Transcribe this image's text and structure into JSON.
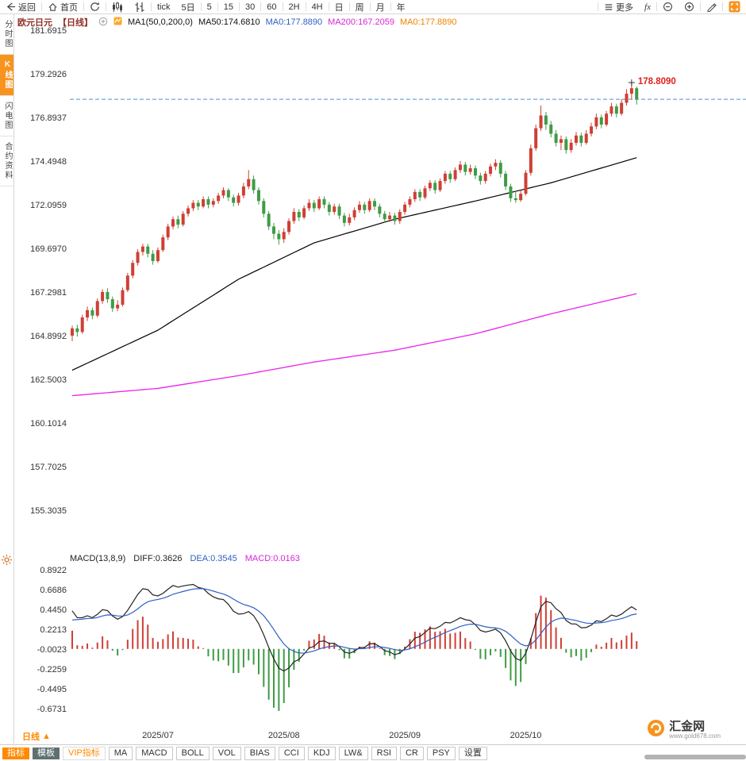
{
  "toolbar": {
    "back_label": "返回",
    "home_label": "首页",
    "tick_label": "tick",
    "periods": [
      "5日",
      "5",
      "15",
      "30",
      "60",
      "2H",
      "4H",
      "日",
      "周",
      "月",
      "年"
    ],
    "more_label": "更多",
    "fx_label": "fx"
  },
  "sidebar": {
    "tabs": [
      {
        "id": "time-chart",
        "label": "分时图",
        "active": false
      },
      {
        "id": "kline-chart",
        "label": "K线图",
        "active": true
      },
      {
        "id": "lightning-chart",
        "label": "闪电图",
        "active": false
      },
      {
        "id": "contract-info",
        "label": "合约资料",
        "active": false
      }
    ]
  },
  "chart_header": {
    "symbol": "欧元日元",
    "period_tag": "【日线】",
    "ma_params": "MA1(50,0,200,0)",
    "ma50": "MA50:174.6810",
    "ma0_blue": "MA0:177.8890",
    "ma200": "MA200:167.2059",
    "ma0_orange": "MA0:177.8890"
  },
  "macd_header": {
    "title": "MACD(13,8,9)",
    "diff": "DIFF:0.3626",
    "dea": "DEA:0.3545",
    "macd": "MACD:0.0163"
  },
  "period_selector": {
    "label": "日线",
    "arrow": "▲"
  },
  "logo": {
    "name": "汇金网",
    "url": "www.gold678.com"
  },
  "bottom_toolbar": {
    "tabs": [
      {
        "label": "指标",
        "style": "orange"
      },
      {
        "label": "模板",
        "style": "dark"
      },
      {
        "label": "VIP指标",
        "style": "vip"
      }
    ],
    "indicators": [
      "MA",
      "MACD",
      "BOLL",
      "VOL",
      "BIAS",
      "CCI",
      "KDJ",
      "LW&",
      "RSI",
      "CR",
      "PSY",
      "设置"
    ]
  },
  "colors": {
    "up": "#cf3f35",
    "down": "#3f9b45",
    "ma50": "#000000",
    "ma200": "#ec22ec",
    "last_price_line": "#4d8fd1",
    "peak_label": "#e02020",
    "diff_line": "#222222",
    "dea_line": "#2f5fc4",
    "axis_text": "#333333"
  },
  "chart_data": {
    "type": "candlestick",
    "symbol": "EUR/JPY daily (欧元日元 日线)",
    "last_price": 177.889,
    "peak_price": 178.809,
    "peak_day": 111,
    "price_axis_ticks": [
      181.6915,
      179.2926,
      176.8937,
      174.4948,
      172.0959,
      169.697,
      167.2981,
      164.8992,
      162.5003,
      160.1014,
      157.7025,
      155.3035
    ],
    "month_ticks": [
      {
        "day": 17,
        "label": "2025/07"
      },
      {
        "day": 42,
        "label": "2025/08"
      },
      {
        "day": 66,
        "label": "2025/09"
      },
      {
        "day": 90,
        "label": "2025/10"
      }
    ],
    "candles_ohlc": [
      [
        164.9,
        165.45,
        164.6,
        165.3
      ],
      [
        165.3,
        165.5,
        164.85,
        165.1
      ],
      [
        165.1,
        166.05,
        165.0,
        165.9
      ],
      [
        165.9,
        166.5,
        165.7,
        166.3
      ],
      [
        166.3,
        166.45,
        165.8,
        166.0
      ],
      [
        166.0,
        166.95,
        165.9,
        166.8
      ],
      [
        166.8,
        167.45,
        166.65,
        167.3
      ],
      [
        167.3,
        167.5,
        166.7,
        166.9
      ],
      [
        166.9,
        167.05,
        166.2,
        166.4
      ],
      [
        166.4,
        166.85,
        166.25,
        166.6
      ],
      [
        166.6,
        167.55,
        166.5,
        167.4
      ],
      [
        167.4,
        168.35,
        167.3,
        168.2
      ],
      [
        168.2,
        169.05,
        168.05,
        168.9
      ],
      [
        168.9,
        169.65,
        168.75,
        169.5
      ],
      [
        169.5,
        169.95,
        169.3,
        169.8
      ],
      [
        169.8,
        169.95,
        169.2,
        169.4
      ],
      [
        169.4,
        169.6,
        168.8,
        169.0
      ],
      [
        169.0,
        169.75,
        168.9,
        169.6
      ],
      [
        169.6,
        170.45,
        169.5,
        170.3
      ],
      [
        170.3,
        171.05,
        170.15,
        170.9
      ],
      [
        170.9,
        171.45,
        170.75,
        171.3
      ],
      [
        171.3,
        171.5,
        170.8,
        171.0
      ],
      [
        171.0,
        171.75,
        170.9,
        171.6
      ],
      [
        171.6,
        172.05,
        171.45,
        171.9
      ],
      [
        171.9,
        172.35,
        171.75,
        172.2
      ],
      [
        172.2,
        172.35,
        171.8,
        172.0
      ],
      [
        172.0,
        172.55,
        171.9,
        172.4
      ],
      [
        172.4,
        172.55,
        171.9,
        172.1
      ],
      [
        172.1,
        172.45,
        171.95,
        172.3
      ],
      [
        172.3,
        172.75,
        172.15,
        172.6
      ],
      [
        172.6,
        173.05,
        172.45,
        172.9
      ],
      [
        172.9,
        173.0,
        172.3,
        172.5
      ],
      [
        172.5,
        172.65,
        172.0,
        172.2
      ],
      [
        172.2,
        172.75,
        172.05,
        172.6
      ],
      [
        172.6,
        173.3,
        172.45,
        173.1
      ],
      [
        173.1,
        174.0,
        172.95,
        173.5
      ],
      [
        173.5,
        173.7,
        172.7,
        172.9
      ],
      [
        172.9,
        173.05,
        172.1,
        172.3
      ],
      [
        172.3,
        172.45,
        171.4,
        171.6
      ],
      [
        171.6,
        171.75,
        170.7,
        170.9
      ],
      [
        170.9,
        171.1,
        170.2,
        170.5
      ],
      [
        170.5,
        170.7,
        169.9,
        170.2
      ],
      [
        170.2,
        170.8,
        170.0,
        170.6
      ],
      [
        170.6,
        171.35,
        170.45,
        171.2
      ],
      [
        171.2,
        171.9,
        171.05,
        171.7
      ],
      [
        171.7,
        171.85,
        171.2,
        171.4
      ],
      [
        171.4,
        172.05,
        171.3,
        171.9
      ],
      [
        171.9,
        172.4,
        171.75,
        172.2
      ],
      [
        172.2,
        172.35,
        171.7,
        171.9
      ],
      [
        171.9,
        172.55,
        171.8,
        172.4
      ],
      [
        172.4,
        172.55,
        171.9,
        172.1
      ],
      [
        172.1,
        172.25,
        171.5,
        171.7
      ],
      [
        171.7,
        172.15,
        171.55,
        172.0
      ],
      [
        172.0,
        172.15,
        171.3,
        171.5
      ],
      [
        171.5,
        171.65,
        170.9,
        171.1
      ],
      [
        171.1,
        171.6,
        170.95,
        171.4
      ],
      [
        171.4,
        171.95,
        171.25,
        171.8
      ],
      [
        171.8,
        172.3,
        171.65,
        172.1
      ],
      [
        172.1,
        172.25,
        171.6,
        171.8
      ],
      [
        171.8,
        172.45,
        171.7,
        172.3
      ],
      [
        172.3,
        172.45,
        171.8,
        172.0
      ],
      [
        172.0,
        172.15,
        171.4,
        171.6
      ],
      [
        171.6,
        171.75,
        171.1,
        171.3
      ],
      [
        171.3,
        171.7,
        171.15,
        171.5
      ],
      [
        171.5,
        171.65,
        171.0,
        171.2
      ],
      [
        171.2,
        171.85,
        171.05,
        171.7
      ],
      [
        171.7,
        172.25,
        171.55,
        172.1
      ],
      [
        172.1,
        172.55,
        171.95,
        172.4
      ],
      [
        172.4,
        172.95,
        172.25,
        172.8
      ],
      [
        172.8,
        172.95,
        172.3,
        172.5
      ],
      [
        172.5,
        173.15,
        172.4,
        173.0
      ],
      [
        173.0,
        173.45,
        172.85,
        173.3
      ],
      [
        173.3,
        173.45,
        172.7,
        172.9
      ],
      [
        172.9,
        173.55,
        172.8,
        173.4
      ],
      [
        173.4,
        173.95,
        173.25,
        173.8
      ],
      [
        173.8,
        173.95,
        173.3,
        173.5
      ],
      [
        173.5,
        174.15,
        173.4,
        174.0
      ],
      [
        174.0,
        174.5,
        173.85,
        174.3
      ],
      [
        174.3,
        174.45,
        173.7,
        173.9
      ],
      [
        173.9,
        174.3,
        173.75,
        174.1
      ],
      [
        174.1,
        174.25,
        173.5,
        173.7
      ],
      [
        173.7,
        173.85,
        173.2,
        173.4
      ],
      [
        173.4,
        173.95,
        173.25,
        173.8
      ],
      [
        173.8,
        174.35,
        173.65,
        174.2
      ],
      [
        174.2,
        174.6,
        174.0,
        174.4
      ],
      [
        174.4,
        174.55,
        173.6,
        173.8
      ],
      [
        173.8,
        173.95,
        172.9,
        173.1
      ],
      [
        173.1,
        173.25,
        172.25,
        172.45
      ],
      [
        172.45,
        172.85,
        172.2,
        172.35
      ],
      [
        172.35,
        172.9,
        172.25,
        172.7
      ],
      [
        172.7,
        174.0,
        172.6,
        173.85
      ],
      [
        173.85,
        175.4,
        173.7,
        175.2
      ],
      [
        175.2,
        176.5,
        175.05,
        176.3
      ],
      [
        176.3,
        177.55,
        176.15,
        177.0
      ],
      [
        177.0,
        177.2,
        176.2,
        176.5
      ],
      [
        176.5,
        176.7,
        175.8,
        176.0
      ],
      [
        176.0,
        176.2,
        175.3,
        175.5
      ],
      [
        175.5,
        175.9,
        175.1,
        175.7
      ],
      [
        175.7,
        175.85,
        174.9,
        175.1
      ],
      [
        175.1,
        175.7,
        174.95,
        175.5
      ],
      [
        175.5,
        176.1,
        175.35,
        175.9
      ],
      [
        175.9,
        176.05,
        175.3,
        175.5
      ],
      [
        175.5,
        176.2,
        175.4,
        176.0
      ],
      [
        176.0,
        176.6,
        175.85,
        176.4
      ],
      [
        176.4,
        177.1,
        176.25,
        176.9
      ],
      [
        176.9,
        177.05,
        176.3,
        176.5
      ],
      [
        176.5,
        177.25,
        176.4,
        177.1
      ],
      [
        177.1,
        177.7,
        176.95,
        177.5
      ],
      [
        177.5,
        177.65,
        176.9,
        177.1
      ],
      [
        177.1,
        177.9,
        177.0,
        177.7
      ],
      [
        177.7,
        178.45,
        177.55,
        178.2
      ],
      [
        178.2,
        178.81,
        177.9,
        178.5
      ],
      [
        178.5,
        178.6,
        177.6,
        177.89
      ]
    ],
    "ma50_anchors": [
      [
        0,
        163.0
      ],
      [
        17,
        165.2
      ],
      [
        33,
        168.0
      ],
      [
        48,
        170.0
      ],
      [
        64,
        171.3
      ],
      [
        80,
        172.3
      ],
      [
        95,
        173.3
      ],
      [
        112,
        174.681
      ]
    ],
    "ma200_anchors": [
      [
        0,
        161.6
      ],
      [
        17,
        162.0
      ],
      [
        33,
        162.7
      ],
      [
        48,
        163.45
      ],
      [
        64,
        164.1
      ],
      [
        80,
        165.0
      ],
      [
        95,
        166.1
      ],
      [
        112,
        167.2059
      ]
    ],
    "macd": {
      "params": [
        13,
        8,
        9
      ],
      "axis_ticks": [
        0.8922,
        0.6686,
        0.445,
        0.2213,
        -0.0023,
        -0.2259,
        -0.4495,
        -0.6731
      ],
      "diff_last": 0.3626,
      "dea_last": 0.3545,
      "hist_last": 0.0163
    }
  }
}
